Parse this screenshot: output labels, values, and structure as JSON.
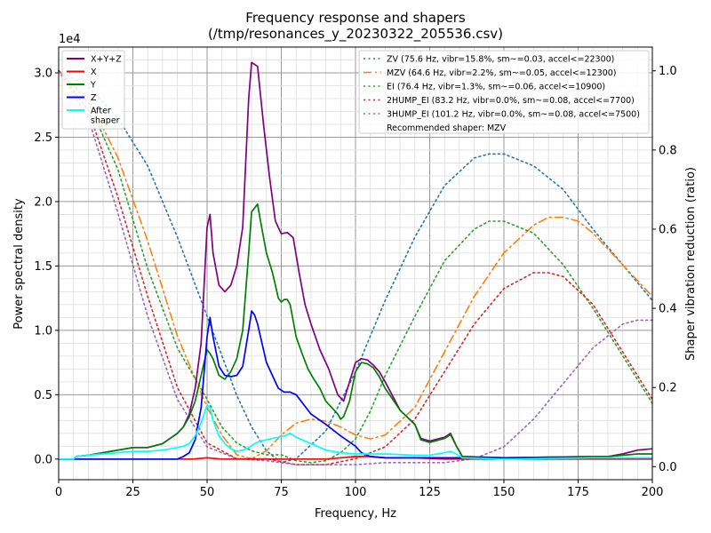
{
  "chart_data": {
    "type": "line",
    "title": "Frequency response and shapers",
    "subtitle": "(/tmp/resonances_y_20230322_205536.csv)",
    "xlabel": "Frequency, Hz",
    "ylabel": "Power spectral density",
    "y2label": "Shaper vibration reduction (ratio)",
    "y_scale_label": "1e4",
    "xlim": [
      0,
      200
    ],
    "ylim": [
      -0.16,
      3.2
    ],
    "y2lim": [
      -0.033,
      1.06
    ],
    "x_ticks": [
      0,
      25,
      50,
      75,
      100,
      125,
      150,
      175,
      200
    ],
    "y_ticks": [
      0.0,
      0.5,
      1.0,
      1.5,
      2.0,
      2.5,
      3.0
    ],
    "y_tick_labels": [
      "0.0",
      "0.5",
      "1.0",
      "1.5",
      "2.0",
      "2.5",
      "3.0"
    ],
    "y2_ticks": [
      0.0,
      0.2,
      0.4,
      0.6,
      0.8,
      1.0
    ],
    "y2_tick_labels": [
      "0.0",
      "0.2",
      "0.4",
      "0.6",
      "0.8",
      "1.0"
    ],
    "grid": true,
    "psd_series": [
      {
        "name": "X+Y+Z",
        "color": "#800080",
        "x": [
          0,
          5,
          6,
          10,
          15,
          20,
          25,
          30,
          35,
          40,
          42,
          44,
          46,
          48,
          50,
          51,
          52,
          54,
          56,
          58,
          60,
          62,
          64,
          65,
          67,
          69,
          71,
          73,
          75,
          77,
          79,
          81,
          83,
          85,
          88,
          91,
          94,
          96,
          98,
          100,
          102,
          104,
          106,
          108,
          110,
          115,
          120,
          122,
          125,
          130,
          132,
          134,
          136,
          150,
          180,
          185,
          190,
          195,
          200
        ],
        "y": [
          0.0,
          0.0,
          0.02,
          0.03,
          0.05,
          0.07,
          0.09,
          0.09,
          0.12,
          0.2,
          0.25,
          0.35,
          0.55,
          0.9,
          1.8,
          1.9,
          1.6,
          1.35,
          1.3,
          1.35,
          1.5,
          1.8,
          2.8,
          3.08,
          3.05,
          2.6,
          2.2,
          1.85,
          1.75,
          1.76,
          1.72,
          1.45,
          1.2,
          1.05,
          0.85,
          0.7,
          0.5,
          0.45,
          0.6,
          0.75,
          0.78,
          0.77,
          0.73,
          0.68,
          0.6,
          0.38,
          0.27,
          0.16,
          0.14,
          0.17,
          0.2,
          0.1,
          0.02,
          0.01,
          0.02,
          0.02,
          0.04,
          0.07,
          0.08
        ]
      },
      {
        "name": "X",
        "color": "#ff0000",
        "x": [
          0,
          10,
          20,
          30,
          40,
          45,
          50,
          55,
          60,
          70,
          80,
          90,
          100,
          105,
          110,
          120,
          130,
          140,
          150,
          200
        ],
        "y": [
          0.0,
          0.0,
          0.0,
          0.0,
          0.0,
          0.0,
          0.01,
          0.0,
          0.0,
          0.0,
          0.0,
          0.0,
          0.02,
          0.02,
          0.01,
          0.01,
          0.0,
          0.0,
          0.0,
          0.0
        ]
      },
      {
        "name": "Y",
        "color": "#008000",
        "x": [
          0,
          5,
          6,
          10,
          15,
          20,
          25,
          30,
          35,
          40,
          42,
          44,
          46,
          48,
          50,
          51,
          52,
          54,
          56,
          58,
          60,
          62,
          64,
          65,
          66,
          67,
          68,
          70,
          72,
          74,
          75,
          76,
          77,
          78,
          80,
          82,
          84,
          86,
          88,
          90,
          92,
          94,
          95,
          96,
          98,
          100,
          102,
          104,
          106,
          108,
          110,
          115,
          120,
          122,
          125,
          130,
          132,
          134,
          136,
          150,
          180,
          185,
          190,
          195,
          200
        ],
        "y": [
          0.0,
          0.0,
          0.02,
          0.03,
          0.05,
          0.07,
          0.09,
          0.09,
          0.12,
          0.2,
          0.25,
          0.33,
          0.45,
          0.65,
          0.85,
          0.82,
          0.78,
          0.65,
          0.62,
          0.68,
          0.78,
          1.0,
          1.6,
          1.92,
          1.95,
          1.98,
          1.85,
          1.6,
          1.45,
          1.25,
          1.22,
          1.24,
          1.24,
          1.2,
          0.95,
          0.82,
          0.7,
          0.62,
          0.55,
          0.45,
          0.4,
          0.35,
          0.31,
          0.33,
          0.45,
          0.68,
          0.75,
          0.74,
          0.71,
          0.64,
          0.55,
          0.38,
          0.27,
          0.15,
          0.13,
          0.16,
          0.19,
          0.1,
          0.02,
          0.01,
          0.02,
          0.02,
          0.03,
          0.04,
          0.04
        ]
      },
      {
        "name": "Z",
        "color": "#0000ff",
        "x": [
          0,
          5,
          10,
          20,
          30,
          40,
          42,
          44,
          46,
          48,
          50,
          51,
          52,
          54,
          56,
          58,
          60,
          62,
          64,
          65,
          66,
          67,
          68,
          70,
          72,
          74,
          76,
          78,
          80,
          85,
          90,
          95,
          100,
          102,
          105,
          110,
          120,
          130,
          132,
          134,
          136,
          150,
          180,
          185,
          190,
          195,
          200
        ],
        "y": [
          0.0,
          0.0,
          0.0,
          0.0,
          0.0,
          0.0,
          0.02,
          0.05,
          0.15,
          0.4,
          0.95,
          1.1,
          0.95,
          0.72,
          0.65,
          0.64,
          0.65,
          0.72,
          1.0,
          1.15,
          1.12,
          1.05,
          0.95,
          0.75,
          0.65,
          0.55,
          0.52,
          0.52,
          0.5,
          0.35,
          0.27,
          0.18,
          0.1,
          0.05,
          0.02,
          0.01,
          0.01,
          0.01,
          0.01,
          0.01,
          0.01,
          0.01,
          0.01,
          0.01,
          0.01,
          0.01,
          0.01
        ]
      },
      {
        "name": "After\nshaper",
        "color": "#00ffff",
        "x": [
          0,
          5,
          6,
          10,
          15,
          20,
          25,
          30,
          35,
          40,
          42,
          44,
          46,
          48,
          50,
          51,
          52,
          54,
          56,
          58,
          60,
          62,
          64,
          66,
          68,
          70,
          72,
          74,
          76,
          78,
          80,
          85,
          90,
          95,
          100,
          110,
          120,
          125,
          130,
          132,
          134,
          136,
          150,
          180,
          185,
          190,
          195,
          200
        ],
        "y": [
          0.0,
          0.0,
          0.02,
          0.03,
          0.04,
          0.05,
          0.06,
          0.06,
          0.07,
          0.09,
          0.1,
          0.12,
          0.18,
          0.28,
          0.42,
          0.4,
          0.3,
          0.18,
          0.12,
          0.08,
          0.06,
          0.07,
          0.09,
          0.12,
          0.14,
          0.15,
          0.16,
          0.17,
          0.18,
          0.2,
          0.17,
          0.12,
          0.07,
          0.05,
          0.04,
          0.04,
          0.03,
          0.03,
          0.05,
          0.06,
          0.04,
          0.01,
          0.0,
          0.01,
          0.01,
          0.01,
          0.01,
          0.01
        ]
      }
    ],
    "shaper_series": [
      {
        "name": "ZV (75.6 Hz, vibr=15.8%, sm~=0.03, accel<=22300)",
        "color": "#1f77b4",
        "dash": "dotted",
        "x": [
          0,
          10,
          20,
          30,
          40,
          50,
          55,
          60,
          65,
          70,
          75,
          80,
          90,
          100,
          110,
          120,
          130,
          140,
          145,
          150,
          160,
          170,
          180,
          190,
          200
        ],
        "y": [
          1.0,
          0.96,
          0.88,
          0.76,
          0.58,
          0.38,
          0.28,
          0.18,
          0.1,
          0.04,
          0.01,
          0.02,
          0.09,
          0.24,
          0.42,
          0.58,
          0.71,
          0.78,
          0.79,
          0.79,
          0.76,
          0.7,
          0.6,
          0.51,
          0.42
        ]
      },
      {
        "name": "MZV (64.6 Hz, vibr=2.2%, sm~=0.05, accel<=12300)",
        "color": "#ff7f0e",
        "dash": "dashdot",
        "x": [
          0,
          10,
          20,
          30,
          40,
          45,
          50,
          55,
          60,
          65,
          70,
          75,
          80,
          85,
          90,
          95,
          100,
          105,
          110,
          120,
          130,
          140,
          150,
          160,
          165,
          170,
          175,
          180,
          190,
          200
        ],
        "y": [
          1.0,
          0.93,
          0.78,
          0.57,
          0.33,
          0.24,
          0.15,
          0.08,
          0.03,
          0.02,
          0.04,
          0.08,
          0.11,
          0.12,
          0.115,
          0.1,
          0.08,
          0.07,
          0.08,
          0.15,
          0.29,
          0.43,
          0.54,
          0.61,
          0.63,
          0.63,
          0.62,
          0.59,
          0.51,
          0.43
        ]
      },
      {
        "name": "EI (76.4 Hz, vibr=1.3%, sm~=0.06, accel<=10900)",
        "color": "#2ca02c",
        "dash": "dotted",
        "x": [
          0,
          10,
          20,
          30,
          40,
          50,
          55,
          60,
          65,
          70,
          75,
          80,
          85,
          90,
          95,
          100,
          105,
          110,
          120,
          130,
          140,
          145,
          150,
          160,
          170,
          180,
          190,
          200
        ],
        "y": [
          1.0,
          0.92,
          0.75,
          0.5,
          0.3,
          0.17,
          0.1,
          0.06,
          0.04,
          0.03,
          0.03,
          0.015,
          0.01,
          0.015,
          0.035,
          0.07,
          0.14,
          0.23,
          0.38,
          0.52,
          0.6,
          0.62,
          0.62,
          0.59,
          0.51,
          0.4,
          0.28,
          0.16
        ]
      },
      {
        "name": "2HUMP_EI (83.2 Hz, vibr=0.0%, sm~=0.08, accel<=7700)",
        "color": "#d62728",
        "dash": "dotted",
        "x": [
          0,
          10,
          20,
          30,
          40,
          50,
          60,
          70,
          80,
          90,
          100,
          110,
          120,
          130,
          140,
          150,
          160,
          165,
          170,
          180,
          190,
          200
        ],
        "y": [
          1.0,
          0.9,
          0.68,
          0.43,
          0.2,
          0.06,
          0.02,
          0.02,
          0.005,
          0.005,
          0.02,
          0.05,
          0.12,
          0.24,
          0.36,
          0.45,
          0.49,
          0.49,
          0.48,
          0.41,
          0.29,
          0.17
        ]
      },
      {
        "name": "3HUMP_EI (101.2 Hz, vibr=0.0%, sm~=0.08, accel<=7500)",
        "color": "#9467bd",
        "dash": "dotted",
        "x": [
          0,
          10,
          20,
          30,
          40,
          50,
          60,
          70,
          80,
          90,
          100,
          110,
          120,
          130,
          140,
          150,
          160,
          170,
          180,
          190,
          195,
          200
        ],
        "y": [
          1.0,
          0.88,
          0.64,
          0.38,
          0.17,
          0.05,
          0.02,
          0.015,
          0.005,
          0.005,
          0.005,
          0.01,
          0.01,
          0.01,
          0.02,
          0.05,
          0.12,
          0.21,
          0.3,
          0.36,
          0.37,
          0.37
        ]
      }
    ],
    "recommended_text": "Recommended shaper: MZV",
    "legend_left_placement": "upper-left",
    "legend_right_placement": "upper-right"
  }
}
